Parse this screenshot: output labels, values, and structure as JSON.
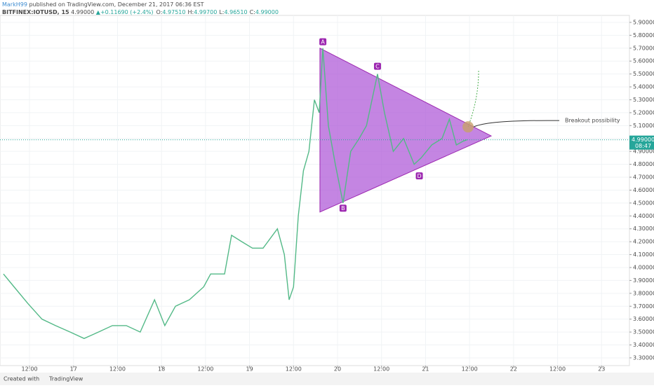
{
  "header": {
    "author": "MarkH99",
    "published": "published on TradingView.com, December 21, 2017 06:36 EST",
    "symbol": "BITFINEX:IOTUSD, 15",
    "price": "4.99000",
    "arrow": "▲",
    "change": "+0.11690 (+2.4%)",
    "ohlc": [
      {
        "key": "O:",
        "value": "4.97510"
      },
      {
        "key": "H:",
        "value": "4.99700"
      },
      {
        "key": "L:",
        "value": "4.96510"
      },
      {
        "key": "C:",
        "value": "4.99000"
      }
    ]
  },
  "chart_data": {
    "type": "line",
    "x": [
      -7.1,
      -4.2,
      -0.4,
      3.4,
      7.1,
      11.1,
      14.9,
      18.8,
      22.6,
      26.4,
      30.2,
      34.1,
      36.9,
      39.8,
      43.6,
      47.5,
      49.4,
      53.2,
      55.1,
      57.9,
      60.8,
      63.7,
      67.6,
      69.5,
      70.8,
      72,
      73.3,
      74.7,
      76.2,
      77.7,
      79,
      80,
      81.5,
      83.4,
      85.5,
      87.6,
      89.9,
      91.9,
      94.9,
      96.8,
      99.2,
      102,
      104.9,
      106.8,
      109.7,
      112.5,
      114.5,
      116.4,
      118.3,
      119.3
    ],
    "series": [
      {
        "name": "IOTUSD",
        "color": "#53b987",
        "values": [
          3.95,
          3.85,
          3.72,
          3.6,
          3.55,
          3.5,
          3.45,
          3.5,
          3.55,
          3.55,
          3.5,
          3.75,
          3.55,
          3.7,
          3.75,
          3.85,
          3.95,
          3.95,
          4.25,
          4.2,
          4.15,
          4.15,
          4.3,
          4.1,
          3.75,
          3.85,
          4.4,
          4.75,
          4.9,
          5.3,
          5.2,
          5.7,
          5.1,
          4.8,
          4.5,
          4.9,
          5.0,
          5.1,
          5.5,
          5.2,
          4.9,
          5.0,
          4.8,
          4.85,
          4.95,
          5.0,
          5.15,
          4.95,
          4.98,
          4.99
        ]
      }
    ],
    "xlim": [
      -8.04,
      163.6
    ],
    "xticks": [
      {
        "value": 0,
        "label": "12:00"
      },
      {
        "value": 12,
        "label": "17"
      },
      {
        "value": 24,
        "label": "12:00"
      },
      {
        "value": 36,
        "label": "18"
      },
      {
        "value": 48,
        "label": "12:00"
      },
      {
        "value": 60,
        "label": "19"
      },
      {
        "value": 72,
        "label": "12:00"
      },
      {
        "value": 84,
        "label": "20"
      },
      {
        "value": 96,
        "label": "12:00"
      },
      {
        "value": 108,
        "label": "21"
      },
      {
        "value": 120,
        "label": "12:00"
      },
      {
        "value": 132,
        "label": "22"
      },
      {
        "value": 144,
        "label": "12:00"
      },
      {
        "value": 156,
        "label": "23"
      }
    ],
    "ylim": [
      3.24,
      5.954
    ],
    "yticks": [
      {
        "value": 3.3,
        "label": "3.30000"
      },
      {
        "value": 3.4,
        "label": "3.40000"
      },
      {
        "value": 3.5,
        "label": "3.50000"
      },
      {
        "value": 3.6,
        "label": "3.60000"
      },
      {
        "value": 3.7,
        "label": "3.70000"
      },
      {
        "value": 3.8,
        "label": "3.80000"
      },
      {
        "value": 3.9,
        "label": "3.90000"
      },
      {
        "value": 4.0,
        "label": "4.00000"
      },
      {
        "value": 4.1,
        "label": "4.10000"
      },
      {
        "value": 4.2,
        "label": "4.20000"
      },
      {
        "value": 4.3,
        "label": "4.30000"
      },
      {
        "value": 4.4,
        "label": "4.40000"
      },
      {
        "value": 4.5,
        "label": "4.50000"
      },
      {
        "value": 4.6,
        "label": "4.60000"
      },
      {
        "value": 4.7,
        "label": "4.70000"
      },
      {
        "value": 4.8,
        "label": "4.80000"
      },
      {
        "value": 4.9,
        "label": "4.90000"
      },
      {
        "value": 5.0,
        "label": "5.00000"
      },
      {
        "value": 5.1,
        "label": "5.10000"
      },
      {
        "value": 5.2,
        "label": "5.20000"
      },
      {
        "value": 5.3,
        "label": "5.30000"
      },
      {
        "value": 5.4,
        "label": "5.40000"
      },
      {
        "value": 5.5,
        "label": "5.50000"
      },
      {
        "value": 5.6,
        "label": "5.60000"
      },
      {
        "value": 5.7,
        "label": "5.70000"
      },
      {
        "value": 5.8,
        "label": "5.80000"
      },
      {
        "value": 5.9,
        "label": "5.90000"
      }
    ],
    "grid": true,
    "last_price": {
      "value": 4.99,
      "label": "4.99000",
      "countdown": "08:47"
    },
    "pattern": {
      "color": "#b05cd8",
      "vertices": [
        [
          79.2,
          5.7
        ],
        [
          79.2,
          4.43
        ],
        [
          125.9,
          5.02
        ]
      ]
    },
    "points": [
      {
        "label": "A",
        "x": 80,
        "y": 5.75
      },
      {
        "label": "B",
        "x": 85.5,
        "y": 4.46
      },
      {
        "label": "C",
        "x": 94.9,
        "y": 5.56
      },
      {
        "label": "D",
        "x": 106.3,
        "y": 4.71
      }
    ],
    "annotation": {
      "text": "Breakout possibility",
      "x": 119.6,
      "y": 5.09
    }
  },
  "footer": {
    "created": "Created with",
    "brand": "TradingView"
  }
}
